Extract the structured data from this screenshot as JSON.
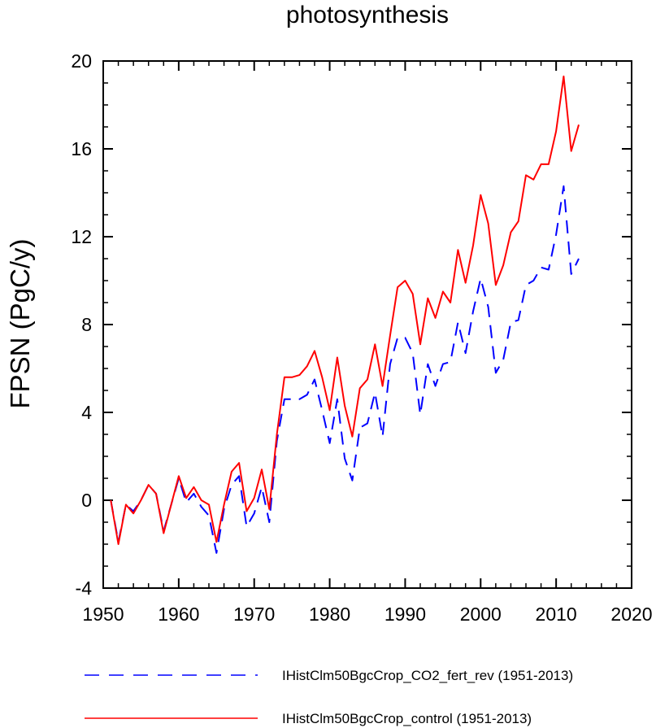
{
  "chart_data": {
    "type": "line",
    "title": "photosynthesis",
    "xlabel": "",
    "ylabel": "FPSN  (PgC/y)",
    "xlim": [
      1950,
      2020
    ],
    "ylim": [
      -4,
      20
    ],
    "xticks": [
      1950,
      1960,
      1970,
      1980,
      1990,
      2000,
      2010,
      2020
    ],
    "yticks": [
      -4,
      0,
      4,
      8,
      12,
      16,
      20
    ],
    "grid": false,
    "legend_position": "bottom",
    "x": [
      1951,
      1952,
      1953,
      1954,
      1955,
      1956,
      1957,
      1958,
      1959,
      1960,
      1961,
      1962,
      1963,
      1964,
      1965,
      1966,
      1967,
      1968,
      1969,
      1970,
      1971,
      1972,
      1973,
      1974,
      1975,
      1976,
      1977,
      1978,
      1979,
      1980,
      1981,
      1982,
      1983,
      1984,
      1985,
      1986,
      1987,
      1988,
      1989,
      1990,
      1991,
      1992,
      1993,
      1994,
      1995,
      1996,
      1997,
      1998,
      1999,
      2000,
      2001,
      2002,
      2003,
      2004,
      2005,
      2006,
      2007,
      2008,
      2009,
      2010,
      2011,
      2012,
      2013
    ],
    "series": [
      {
        "name": "IHistClm50BgcCrop_CO2_fert_rev (1951-2013)",
        "color": "#0000ff",
        "dash": "dashed",
        "values": [
          0.0,
          -1.9,
          -0.2,
          -0.5,
          0.0,
          0.7,
          0.3,
          -1.4,
          -0.2,
          1.0,
          -0.1,
          0.3,
          -0.3,
          -0.7,
          -2.4,
          -0.4,
          0.7,
          1.1,
          -1.2,
          -0.6,
          0.6,
          -1.0,
          2.7,
          4.6,
          4.6,
          4.6,
          4.8,
          5.5,
          4.1,
          2.6,
          4.6,
          1.9,
          0.9,
          3.3,
          3.5,
          4.9,
          2.9,
          6.2,
          7.4,
          7.4,
          6.7,
          3.9,
          6.2,
          5.2,
          6.2,
          6.3,
          8.1,
          6.7,
          8.6,
          10.1,
          8.8,
          5.8,
          6.4,
          8.1,
          8.2,
          9.8,
          10.0,
          10.6,
          10.5,
          12.1,
          14.3,
          10.3,
          11.0
        ]
      },
      {
        "name": "IHistClm50BgcCrop_control (1951-2013)",
        "color": "#ff0000",
        "dash": "solid",
        "values": [
          0.0,
          -2.0,
          -0.2,
          -0.6,
          0.0,
          0.7,
          0.3,
          -1.5,
          -0.2,
          1.1,
          0.1,
          0.6,
          0.0,
          -0.2,
          -1.9,
          -0.2,
          1.3,
          1.7,
          -0.5,
          0.1,
          1.4,
          -0.4,
          3.0,
          5.6,
          5.6,
          5.7,
          6.1,
          6.8,
          5.6,
          4.1,
          6.5,
          4.3,
          2.9,
          5.1,
          5.5,
          7.1,
          5.2,
          7.5,
          9.7,
          10.0,
          9.4,
          7.1,
          9.2,
          8.3,
          9.5,
          9.0,
          11.4,
          9.9,
          11.6,
          13.9,
          12.6,
          9.8,
          10.7,
          12.2,
          12.7,
          14.8,
          14.6,
          15.3,
          15.3,
          16.8,
          19.3,
          15.9,
          17.1
        ]
      }
    ]
  }
}
